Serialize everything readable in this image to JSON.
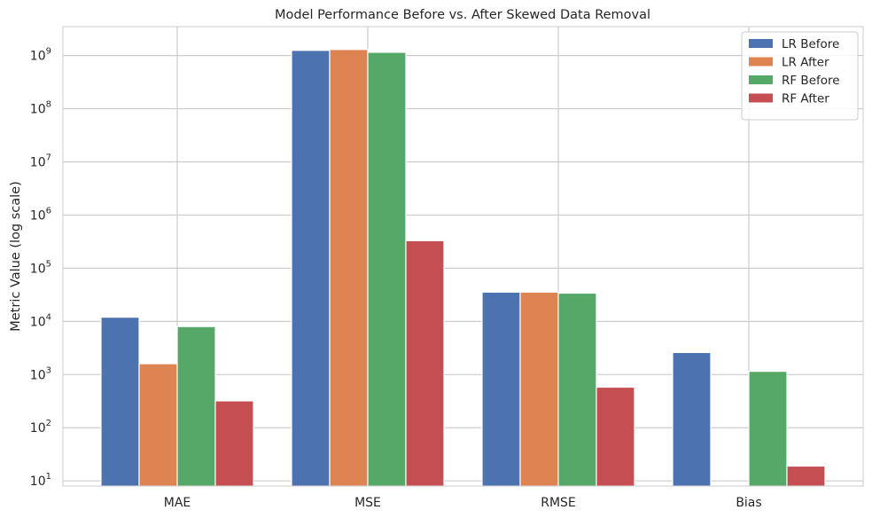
{
  "chart_data": {
    "type": "bar",
    "title": "Model Performance Before vs. After Skewed Data Removal",
    "xlabel": "",
    "ylabel": "Metric Value (log scale)",
    "yscale": "log",
    "ylim": [
      8,
      3500000000
    ],
    "yticks": [
      {
        "value": 10,
        "mantissa": "10",
        "exp": "1"
      },
      {
        "value": 100,
        "mantissa": "10",
        "exp": "2"
      },
      {
        "value": 1000,
        "mantissa": "10",
        "exp": "3"
      },
      {
        "value": 10000,
        "mantissa": "10",
        "exp": "4"
      },
      {
        "value": 100000,
        "mantissa": "10",
        "exp": "5"
      },
      {
        "value": 1000000,
        "mantissa": "10",
        "exp": "6"
      },
      {
        "value": 10000000,
        "mantissa": "10",
        "exp": "7"
      },
      {
        "value": 100000000,
        "mantissa": "10",
        "exp": "8"
      },
      {
        "value": 1000000000,
        "mantissa": "10",
        "exp": "9"
      }
    ],
    "categories": [
      "MAE",
      "MSE",
      "RMSE",
      "Bias"
    ],
    "series": [
      {
        "name": "LR Before",
        "color": "#4c72b0",
        "values": [
          12000,
          1250000000,
          35500,
          2600
        ]
      },
      {
        "name": "LR After",
        "color": "#dd8452",
        "values": [
          1600,
          1300000000,
          35500,
          null
        ]
      },
      {
        "name": "RF Before",
        "color": "#55a868",
        "values": [
          8000,
          1150000000,
          34000,
          1150
        ]
      },
      {
        "name": "RF After",
        "color": "#c44e52",
        "values": [
          320,
          330000,
          580,
          19
        ]
      }
    ],
    "grid": true,
    "legend_position": "top-right"
  }
}
